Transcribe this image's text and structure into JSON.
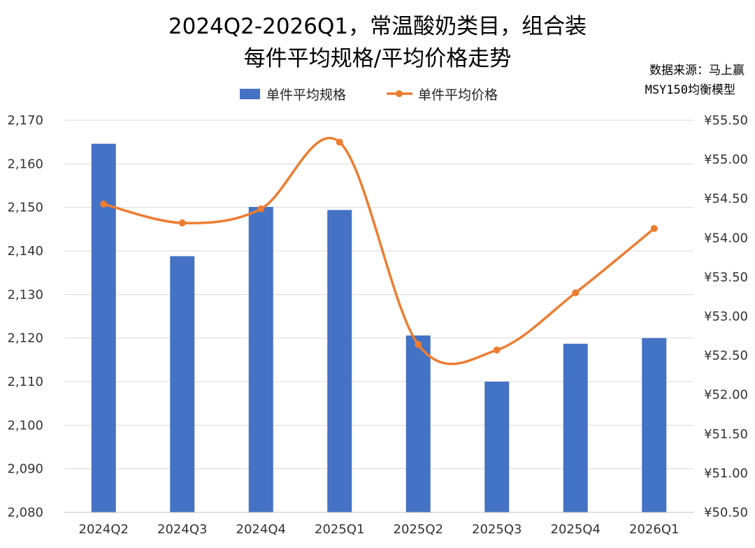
{
  "chart_data": {
    "type": "bar",
    "title": "2024Q2-2026Q1，常温酸奶类目，组合装",
    "subtitle": "每件平均规格/平均价格走势",
    "source_line1": "数据来源：马上赢",
    "source_line2": "MSY150均衡模型",
    "categories": [
      "2024Q2",
      "2024Q3",
      "2024Q4",
      "2025Q1",
      "2025Q2",
      "2025Q3",
      "2025Q4",
      "2026Q1"
    ],
    "series": [
      {
        "name": "单件平均规格",
        "type": "bar",
        "axis": "left",
        "color": "#4472C4",
        "values": [
          2164.6,
          2138.8,
          2150.1,
          2149.4,
          2120.6,
          2110.0,
          2118.7,
          2120.0
        ]
      },
      {
        "name": "单件平均价格",
        "type": "line",
        "smooth": true,
        "axis": "right",
        "color": "#ED7D31",
        "values": [
          54.43,
          54.19,
          54.37,
          55.22,
          52.64,
          52.57,
          53.3,
          54.12
        ]
      }
    ],
    "y_left": {
      "range": [
        2080,
        2170
      ],
      "ticks": [
        "2,170",
        "2,160",
        "2,150",
        "2,140",
        "2,130",
        "2,120",
        "2,110",
        "2,100",
        "2,090",
        "2,080"
      ]
    },
    "y_right": {
      "range": [
        50.5,
        55.5
      ],
      "ticks": [
        "¥55.50",
        "¥55.00",
        "¥54.50",
        "¥54.00",
        "¥53.50",
        "¥53.00",
        "¥52.50",
        "¥52.00",
        "¥51.50",
        "¥51.00",
        "¥50.50"
      ]
    },
    "grid": true,
    "legend_position": "top"
  }
}
